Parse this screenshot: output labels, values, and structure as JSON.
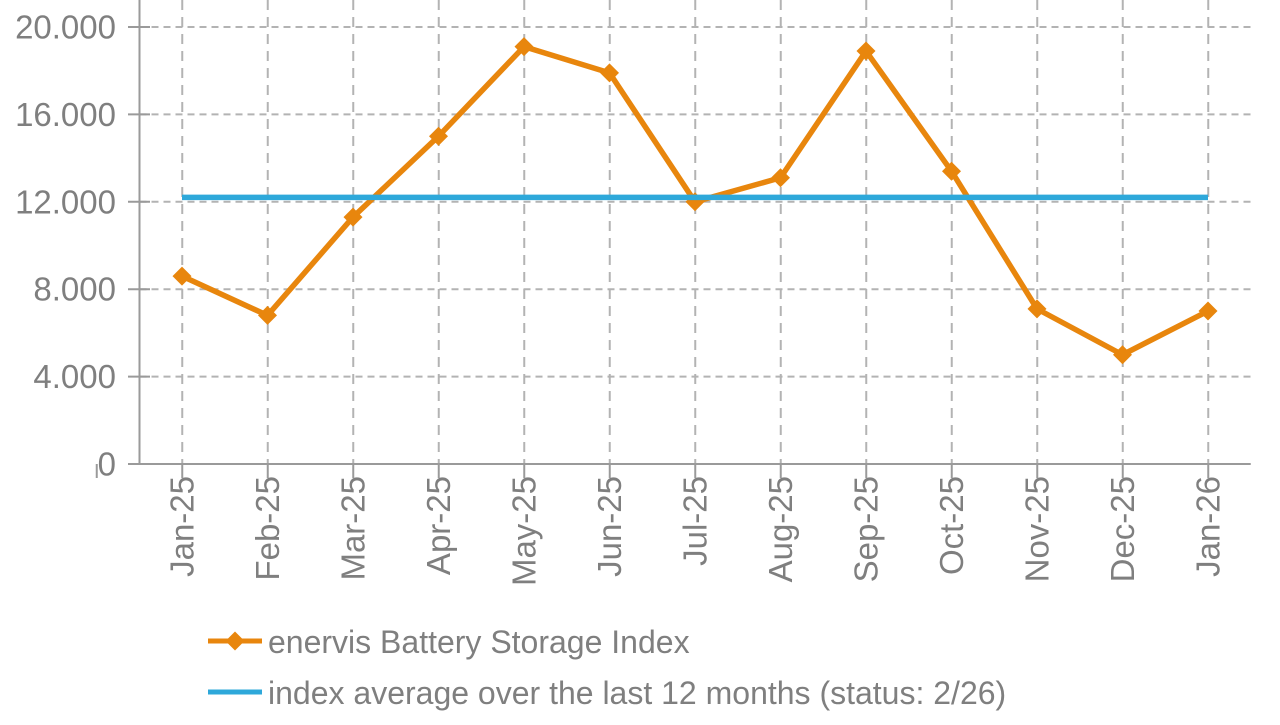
{
  "chart_data": {
    "type": "line",
    "title": "",
    "xlabel": "",
    "ylabel": "",
    "categories": [
      "Jan-25",
      "Feb-25",
      "Mar-25",
      "Apr-25",
      "May-25",
      "Jun-25",
      "Jul-25",
      "Aug-25",
      "Sep-25",
      "Oct-25",
      "Nov-25",
      "Dec-25",
      "Jan-26"
    ],
    "series": [
      {
        "name": "enervis Battery Storage Index",
        "color": "#E8860D",
        "marker": "diamond",
        "values": [
          8600,
          6800,
          11300,
          15000,
          19100,
          17900,
          12000,
          13100,
          18900,
          13400,
          7100,
          5000,
          7000
        ]
      },
      {
        "name": "index average over the last 12 months (status: 2/26)",
        "color": "#2EA8DA",
        "marker": "none",
        "constant_value": 12200
      }
    ],
    "y_ticks": [
      0,
      4000,
      8000,
      12000,
      16000,
      20000
    ],
    "y_tick_labels": [
      "0",
      "4.000",
      "8.000",
      "12.000",
      "16.000",
      "20.000"
    ],
    "ylim": [
      0,
      21300
    ],
    "grid": "dashed",
    "legend_position": "bottom-left",
    "number_format": "thousands-dot"
  },
  "colors": {
    "grid": "#b3b3b3",
    "axis": "#9a9a9a",
    "text": "#7f7f7f"
  }
}
